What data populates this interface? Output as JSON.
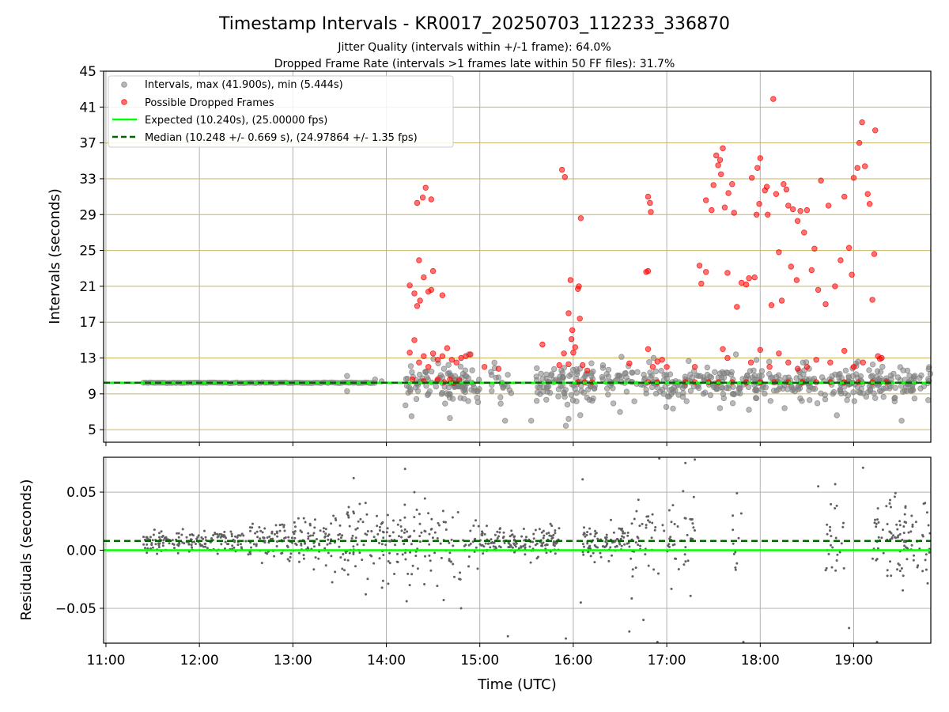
{
  "colors": {
    "intervals": "#808080",
    "dropped": "#ff0000",
    "expected": "#00ff00",
    "median": "#006400",
    "hgrid_top": "#c8b464",
    "grid": "#b0b0b0",
    "residuals": "#606060"
  },
  "chart_data": [
    {
      "type": "scatter",
      "title": "Timestamp Intervals - KR0017_20250703_112233_336870",
      "subtitle_lines": [
        "Jitter Quality (intervals within +/-1 frame): 64.0%",
        "Dropped Frame Rate (intervals >1 frames late within 50 FF files): 31.7%"
      ],
      "xlabel": "",
      "ylabel": "Intervals (seconds)",
      "xlim": [
        10.975,
        19.825
      ],
      "ylim": [
        3.6,
        45
      ],
      "yticks": [
        5,
        9,
        13,
        17,
        21,
        25,
        29,
        33,
        37,
        41,
        45
      ],
      "xticks": [
        11,
        12,
        13,
        14,
        15,
        16,
        17,
        18,
        19
      ],
      "xtick_labels": [
        "11:00",
        "12:00",
        "13:00",
        "14:00",
        "15:00",
        "16:00",
        "17:00",
        "18:00",
        "19:00"
      ],
      "grid": true,
      "legend_position": "top-left",
      "legend": [
        "Intervals, max (41.900s), min (5.444s)",
        "Possible Dropped Frames",
        "Expected (10.240s), (25.00000 fps)",
        "Median (10.248 +/- 0.669 s), (24.97864 +/- 1.35 fps)"
      ],
      "expected_interval": 10.24,
      "median_interval": 10.248,
      "dropped_points": [
        [
          14.25,
          21.1
        ],
        [
          14.3,
          20.2
        ],
        [
          14.33,
          18.8
        ],
        [
          14.36,
          19.4
        ],
        [
          14.33,
          30.3
        ],
        [
          14.39,
          30.9
        ],
        [
          14.42,
          32
        ],
        [
          14.48,
          30.7
        ],
        [
          14.35,
          23.9
        ],
        [
          14.4,
          22
        ],
        [
          14.45,
          20.4
        ],
        [
          14.5,
          22.7
        ],
        [
          14.48,
          20.6
        ],
        [
          14.6,
          20
        ],
        [
          14.25,
          13.6
        ],
        [
          14.3,
          15
        ],
        [
          14.35,
          12.5
        ],
        [
          14.4,
          13.2
        ],
        [
          14.45,
          12
        ],
        [
          14.5,
          13.5
        ],
        [
          14.55,
          12.8
        ],
        [
          14.6,
          13.2
        ],
        [
          14.65,
          14.1
        ],
        [
          14.7,
          12.8
        ],
        [
          14.75,
          12.5
        ],
        [
          14.8,
          13
        ],
        [
          14.85,
          13.2
        ],
        [
          14.9,
          13.4
        ],
        [
          15.2,
          11.8
        ],
        [
          15.05,
          12
        ],
        [
          14.28,
          10.6
        ],
        [
          14.4,
          10.4
        ],
        [
          14.55,
          10.6
        ],
        [
          14.62,
          10.3
        ],
        [
          14.68,
          10.6
        ],
        [
          14.72,
          10.2
        ],
        [
          14.78,
          10.5
        ],
        [
          15.67,
          14.5
        ],
        [
          15.88,
          34
        ],
        [
          15.91,
          33.2
        ],
        [
          15.97,
          21.7
        ],
        [
          15.95,
          18
        ],
        [
          15.98,
          15.1
        ],
        [
          16.05,
          20.7
        ],
        [
          16.06,
          21
        ],
        [
          16.07,
          17.4
        ],
        [
          16.08,
          28.6
        ],
        [
          15.99,
          16.1
        ],
        [
          16.02,
          14.2
        ],
        [
          15.85,
          12.2
        ],
        [
          15.9,
          13.5
        ],
        [
          15.95,
          12.3
        ],
        [
          16.0,
          13.6
        ],
        [
          16.1,
          12.2
        ],
        [
          16.15,
          11.6
        ],
        [
          16.05,
          10.3
        ],
        [
          16.12,
          10.3
        ],
        [
          16.2,
          10.3
        ],
        [
          16.6,
          12.4
        ],
        [
          16.8,
          31
        ],
        [
          16.82,
          30.3
        ],
        [
          16.83,
          29.3
        ],
        [
          16.78,
          22.6
        ],
        [
          16.8,
          22.7
        ],
        [
          16.8,
          14
        ],
        [
          16.85,
          12
        ],
        [
          16.9,
          12.6
        ],
        [
          16.95,
          12.8
        ],
        [
          17.0,
          12
        ],
        [
          16.8,
          10.3
        ],
        [
          16.9,
          10.3
        ],
        [
          17.35,
          23.3
        ],
        [
          17.37,
          21.3
        ],
        [
          17.42,
          22.6
        ],
        [
          17.42,
          30.6
        ],
        [
          17.48,
          29.5
        ],
        [
          17.5,
          32.3
        ],
        [
          17.53,
          35.6
        ],
        [
          17.55,
          34.5
        ],
        [
          17.57,
          35.1
        ],
        [
          17.6,
          36.4
        ],
        [
          17.58,
          33.5
        ],
        [
          17.62,
          29.8
        ],
        [
          17.66,
          31.4
        ],
        [
          17.65,
          22.5
        ],
        [
          17.7,
          32.4
        ],
        [
          17.72,
          29.2
        ],
        [
          17.75,
          18.7
        ],
        [
          17.8,
          21.4
        ],
        [
          17.85,
          21.2
        ],
        [
          17.88,
          21.9
        ],
        [
          17.91,
          33.1
        ],
        [
          17.94,
          22
        ],
        [
          17.96,
          29
        ],
        [
          17.99,
          30.2
        ],
        [
          17.97,
          34.2
        ],
        [
          18.0,
          35.3
        ],
        [
          18.05,
          31.7
        ],
        [
          18.07,
          32.1
        ],
        [
          18.08,
          29
        ],
        [
          18.12,
          18.9
        ],
        [
          18.14,
          41.9
        ],
        [
          18.17,
          31.3
        ],
        [
          18.2,
          24.8
        ],
        [
          18.23,
          19.4
        ],
        [
          18.25,
          32.4
        ],
        [
          18.28,
          31.8
        ],
        [
          18.3,
          30
        ],
        [
          18.33,
          23.2
        ],
        [
          18.35,
          29.6
        ],
        [
          18.39,
          21.7
        ],
        [
          18.4,
          28.3
        ],
        [
          18.43,
          29.4
        ],
        [
          18.47,
          27
        ],
        [
          18.5,
          29.5
        ],
        [
          18.55,
          22.8
        ],
        [
          18.58,
          25.2
        ],
        [
          18.62,
          20.6
        ],
        [
          18.65,
          32.8
        ],
        [
          18.7,
          19
        ],
        [
          18.73,
          30
        ],
        [
          18.8,
          21
        ],
        [
          18.86,
          23.9
        ],
        [
          18.9,
          31
        ],
        [
          18.95,
          25.3
        ],
        [
          18.98,
          22.3
        ],
        [
          19.0,
          33.1
        ],
        [
          19.04,
          34.2
        ],
        [
          19.06,
          37
        ],
        [
          19.09,
          39.3
        ],
        [
          19.12,
          34.4
        ],
        [
          19.15,
          31.3
        ],
        [
          19.17,
          30.2
        ],
        [
          19.2,
          19.5
        ],
        [
          19.22,
          24.6
        ],
        [
          19.23,
          38.4
        ],
        [
          19.26,
          13.2
        ],
        [
          19.3,
          13
        ],
        [
          19.28,
          12.9
        ],
        [
          17.3,
          12
        ],
        [
          17.6,
          14
        ],
        [
          17.65,
          13
        ],
        [
          17.9,
          12.5
        ],
        [
          18.0,
          13.9
        ],
        [
          18.1,
          12
        ],
        [
          18.2,
          13.5
        ],
        [
          18.3,
          12.5
        ],
        [
          18.4,
          11.8
        ],
        [
          18.5,
          12
        ],
        [
          18.6,
          12.8
        ],
        [
          18.75,
          12.5
        ],
        [
          18.9,
          13.8
        ],
        [
          19.0,
          12
        ],
        [
          19.1,
          12.5
        ],
        [
          17.3,
          10.3
        ],
        [
          17.45,
          10.3
        ],
        [
          17.55,
          10.3
        ],
        [
          17.7,
          10.3
        ],
        [
          17.85,
          10.3
        ],
        [
          18.0,
          10.3
        ],
        [
          18.15,
          10.3
        ],
        [
          18.3,
          10.3
        ],
        [
          18.45,
          10.3
        ],
        [
          18.6,
          10.3
        ],
        [
          18.75,
          10.3
        ],
        [
          18.9,
          10.3
        ],
        [
          19.05,
          10.3
        ],
        [
          19.2,
          10.3
        ],
        [
          19.35,
          10.3
        ],
        [
          17.2,
          10.3
        ]
      ]
    },
    {
      "type": "scatter",
      "title": "",
      "xlabel": "Time (UTC)",
      "ylabel": "Residuals (seconds)",
      "xlim": [
        10.975,
        19.825
      ],
      "ylim": [
        -0.08,
        0.08
      ],
      "yticks": [
        -0.05,
        0.0,
        0.05
      ],
      "ytick_labels": [
        "−0.05",
        "0.00",
        "0.05"
      ],
      "xticks": [
        11,
        12,
        13,
        14,
        15,
        16,
        17,
        18,
        19
      ],
      "xtick_labels": [
        "11:00",
        "12:00",
        "13:00",
        "14:00",
        "15:00",
        "16:00",
        "17:00",
        "18:00",
        "19:00"
      ],
      "grid": true,
      "expected_residual": 0.0,
      "median_residual": 0.008,
      "sample_points": [
        [
          13.65,
          0.062
        ],
        [
          13.78,
          -0.038
        ],
        [
          14.2,
          0.07
        ],
        [
          14.3,
          0.05
        ],
        [
          14.25,
          -0.03
        ],
        [
          14.8,
          -0.05
        ],
        [
          15.3,
          -0.074
        ],
        [
          15.92,
          -0.076
        ],
        [
          16.1,
          0.061
        ],
        [
          16.08,
          -0.045
        ],
        [
          16.6,
          -0.07
        ],
        [
          16.75,
          -0.06
        ],
        [
          16.9,
          -0.079
        ],
        [
          16.92,
          0.079
        ],
        [
          17.2,
          0.075
        ],
        [
          17.3,
          0.078
        ],
        [
          17.75,
          0.049
        ],
        [
          17.82,
          -0.079
        ],
        [
          18.62,
          0.055
        ],
        [
          18.95,
          -0.067
        ],
        [
          19.1,
          0.071
        ],
        [
          19.25,
          -0.079
        ],
        [
          19.75,
          0.04
        ]
      ]
    }
  ]
}
